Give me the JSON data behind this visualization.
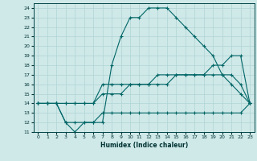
{
  "xlabel": "Humidex (Indice chaleur)",
  "bg_color": "#cfe8e8",
  "grid_color": "#b0d4d4",
  "line_color": "#006666",
  "xlim": [
    -0.5,
    23.5
  ],
  "ylim": [
    11,
    24.5
  ],
  "xticks": [
    0,
    1,
    2,
    3,
    4,
    5,
    6,
    7,
    8,
    9,
    10,
    11,
    12,
    13,
    14,
    15,
    16,
    17,
    18,
    19,
    20,
    21,
    22,
    23
  ],
  "yticks": [
    11,
    12,
    13,
    14,
    15,
    16,
    17,
    18,
    19,
    20,
    21,
    22,
    23,
    24
  ],
  "lines": [
    {
      "x": [
        0,
        1,
        2,
        3,
        4,
        5,
        6,
        7,
        8,
        9,
        10,
        11,
        12,
        13,
        14,
        15,
        16,
        17,
        18,
        19,
        20,
        21,
        22,
        23
      ],
      "y": [
        14,
        14,
        14,
        12,
        11,
        12,
        12,
        12,
        18,
        21,
        23,
        23,
        24,
        24,
        24,
        23,
        22,
        21,
        20,
        19,
        17,
        16,
        15,
        14
      ]
    },
    {
      "x": [
        0,
        1,
        2,
        3,
        4,
        5,
        6,
        7,
        8,
        9,
        10,
        11,
        12,
        13,
        14,
        15,
        16,
        17,
        18,
        19,
        20,
        21,
        22,
        23
      ],
      "y": [
        14,
        14,
        14,
        14,
        14,
        14,
        14,
        15,
        15,
        15,
        16,
        16,
        16,
        17,
        17,
        17,
        17,
        17,
        17,
        18,
        18,
        19,
        19,
        14
      ]
    },
    {
      "x": [
        0,
        1,
        2,
        3,
        4,
        5,
        6,
        7,
        8,
        9,
        10,
        11,
        12,
        13,
        14,
        15,
        16,
        17,
        18,
        19,
        20,
        21,
        22,
        23
      ],
      "y": [
        14,
        14,
        14,
        12,
        12,
        12,
        12,
        13,
        13,
        13,
        13,
        13,
        13,
        13,
        13,
        13,
        13,
        13,
        13,
        13,
        13,
        13,
        13,
        14
      ]
    },
    {
      "x": [
        0,
        1,
        2,
        3,
        4,
        5,
        6,
        7,
        8,
        9,
        10,
        11,
        12,
        13,
        14,
        15,
        16,
        17,
        18,
        19,
        20,
        21,
        22,
        23
      ],
      "y": [
        14,
        14,
        14,
        14,
        14,
        14,
        14,
        16,
        16,
        16,
        16,
        16,
        16,
        16,
        16,
        17,
        17,
        17,
        17,
        17,
        17,
        17,
        16,
        14
      ]
    }
  ]
}
